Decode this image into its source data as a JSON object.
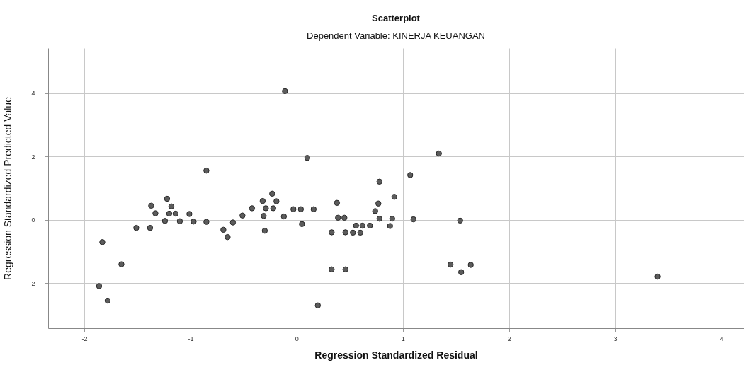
{
  "chart_data": {
    "type": "scatter",
    "title": "Scatterplot",
    "subtitle": "Dependent Variable: KINERJA KEUANGAN",
    "xlabel": "Regression Standardized Residual",
    "ylabel": "Regression Standardized Predicted Value",
    "x": [
      -1.83,
      -1.65,
      -1.86,
      -1.78,
      -1.51,
      -1.38,
      -1.37,
      -1.33,
      -1.22,
      -1.18,
      -1.2,
      -1.24,
      -1.14,
      -1.1,
      -1.01,
      -0.97,
      -0.85,
      -0.85,
      -0.69,
      -0.65,
      -0.6,
      -0.51,
      -0.42,
      -0.32,
      -0.23,
      -0.19,
      -0.29,
      -0.22,
      -0.31,
      -0.3,
      -0.12,
      -0.03,
      -0.11,
      0.04,
      0.05,
      0.1,
      0.16,
      0.2,
      0.33,
      0.33,
      0.38,
      0.39,
      0.45,
      0.46,
      0.46,
      0.53,
      0.56,
      0.6,
      0.62,
      0.69,
      0.74,
      0.77,
      0.78,
      0.78,
      0.88,
      0.9,
      0.92,
      1.07,
      1.1,
      1.34,
      1.45,
      1.54,
      1.55,
      1.64,
      3.4
    ],
    "series": [
      {
        "color": "#5c5c5c",
        "values": [
          -0.7,
          -1.4,
          -2.09,
          -2.55,
          -0.25,
          -0.25,
          0.45,
          0.21,
          0.67,
          0.43,
          0.2,
          -0.03,
          0.2,
          -0.04,
          0.19,
          -0.05,
          1.56,
          -0.06,
          -0.31,
          -0.54,
          -0.08,
          0.14,
          0.37,
          0.6,
          0.83,
          0.59,
          0.37,
          0.37,
          0.13,
          -0.34,
          0.11,
          0.34,
          4.07,
          0.34,
          -0.13,
          1.96,
          0.34,
          -2.7,
          -0.39,
          -1.56,
          0.54,
          0.07,
          0.07,
          -0.39,
          -1.56,
          -0.4,
          -0.18,
          -0.4,
          -0.18,
          -0.18,
          0.28,
          0.52,
          0.04,
          1.21,
          -0.19,
          0.04,
          0.73,
          1.42,
          0.02,
          2.1,
          -1.41,
          -0.02,
          -1.65,
          -1.42,
          -1.79
        ]
      }
    ],
    "xlim": [
      -2.34,
      4.21
    ],
    "ylim": [
      -3.42,
      5.43
    ],
    "xticks": [
      -2,
      -1,
      0,
      1,
      2,
      3,
      4
    ],
    "yticks": [
      -2,
      0,
      2,
      4
    ],
    "grid": true,
    "marker": "circle"
  }
}
